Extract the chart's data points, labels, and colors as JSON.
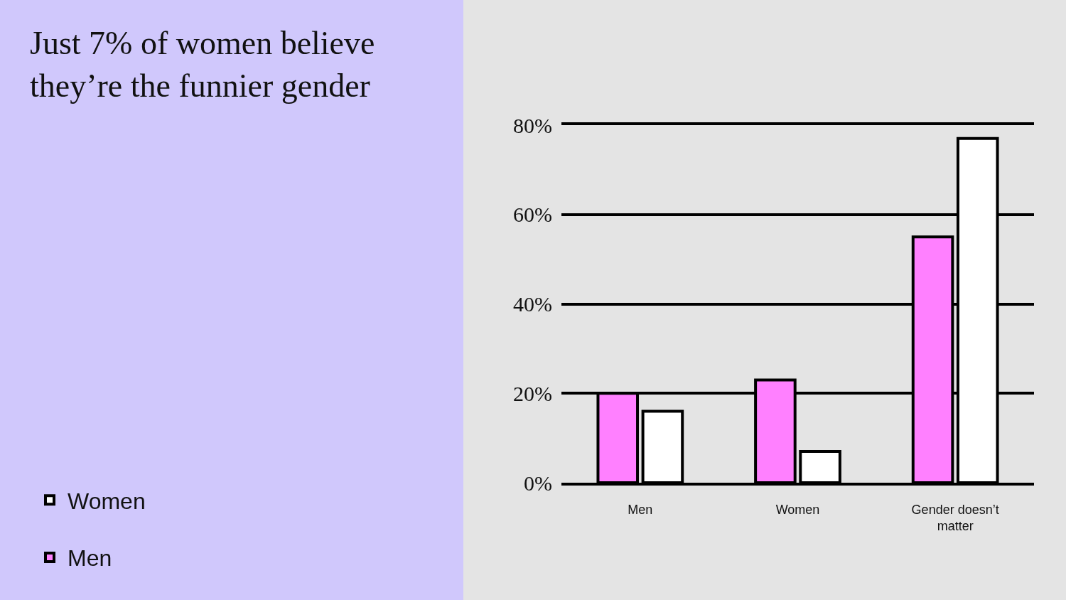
{
  "chart_data": {
    "type": "bar",
    "title": "Just 7% of women believe they’re the funnier gender",
    "categories": [
      "Men",
      "Women",
      "Gender doesn’t matter"
    ],
    "series": [
      {
        "name": "Men",
        "color": "#ff80ff",
        "values": [
          20,
          23,
          55
        ]
      },
      {
        "name": "Women",
        "color": "#ffffff",
        "values": [
          16,
          7,
          77
        ]
      }
    ],
    "ylim": [
      0,
      80
    ],
    "yticks": [
      {
        "value": 0,
        "label": "0%"
      },
      {
        "value": 20,
        "label": "20%"
      },
      {
        "value": 40,
        "label": "40%"
      },
      {
        "value": 60,
        "label": "60%"
      },
      {
        "value": 80,
        "label": "80%"
      }
    ],
    "grid": "y",
    "legend": "bottom left"
  }
}
